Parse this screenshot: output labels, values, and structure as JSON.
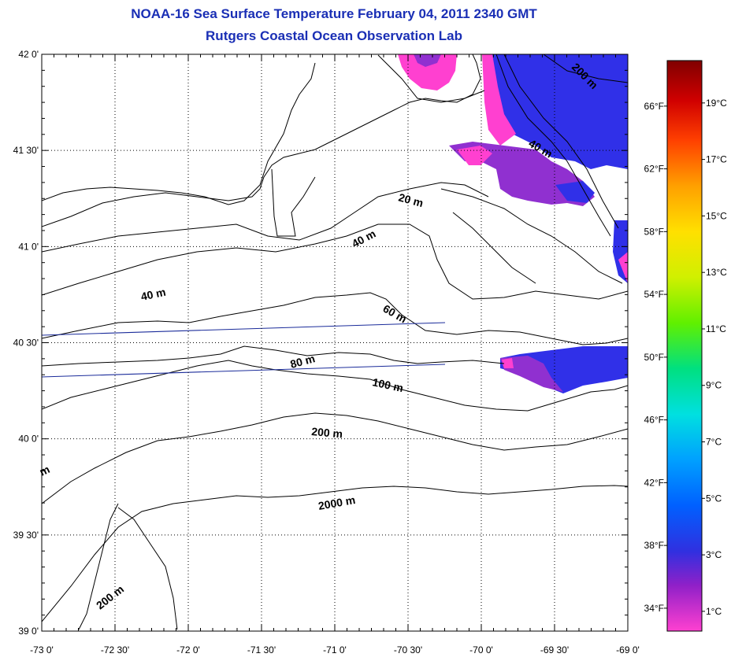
{
  "titles": {
    "line1": "NOAA-16 Sea Surface Temperature February 04, 2011 2340 GMT",
    "line2": "Rutgers Coastal Ocean Observation Lab"
  },
  "lat_ticks": [
    {
      "label": "42 0'",
      "value": 42.0
    },
    {
      "label": "41 30'",
      "value": 41.5
    },
    {
      "label": "41 0'",
      "value": 41.0
    },
    {
      "label": "40 30'",
      "value": 40.5
    },
    {
      "label": "40 0'",
      "value": 40.0
    },
    {
      "label": "39 30'",
      "value": 39.5
    },
    {
      "label": "39 0'",
      "value": 39.0
    }
  ],
  "lon_ticks": [
    {
      "label": "-73 0'",
      "value": -73.0
    },
    {
      "label": "-72 30'",
      "value": -72.5
    },
    {
      "label": "-72 0'",
      "value": -72.0
    },
    {
      "label": "-71 30'",
      "value": -71.5
    },
    {
      "label": "-71 0'",
      "value": -71.0
    },
    {
      "label": "-70 30'",
      "value": -70.5
    },
    {
      "label": "-70 0'",
      "value": -70.0
    },
    {
      "label": "-69 30'",
      "value": -69.5
    },
    {
      "label": "-69 0'",
      "value": -69.0
    }
  ],
  "depth_labels": [
    "200 m",
    "40 m",
    "20 m",
    "40 m",
    "40 m",
    "60 m",
    "80 m",
    "100 m",
    "200 m",
    "2000 m",
    "200 m",
    "m"
  ],
  "colorbar": {
    "celsius": [
      "19°C",
      "17°C",
      "15°C",
      "13°C",
      "11°C",
      "9°C",
      "7°C",
      "5°C",
      "3°C",
      "1°C"
    ],
    "fahrenheit": [
      "66°F",
      "62°F",
      "58°F",
      "54°F",
      "50°F",
      "46°F",
      "42°F",
      "38°F",
      "34°F"
    ],
    "colors": [
      "#ff40d0",
      "#9020c8",
      "#3030e0",
      "#0060ff",
      "#00a0ff",
      "#00e0e0",
      "#00e080",
      "#60f000",
      "#d0f000",
      "#ffe000",
      "#ffa000",
      "#ff4000",
      "#d00000",
      "#800000"
    ]
  },
  "sst_colors": {
    "cold": "#ff40d0",
    "cool": "#9030d0",
    "blue": "#3030e8"
  }
}
